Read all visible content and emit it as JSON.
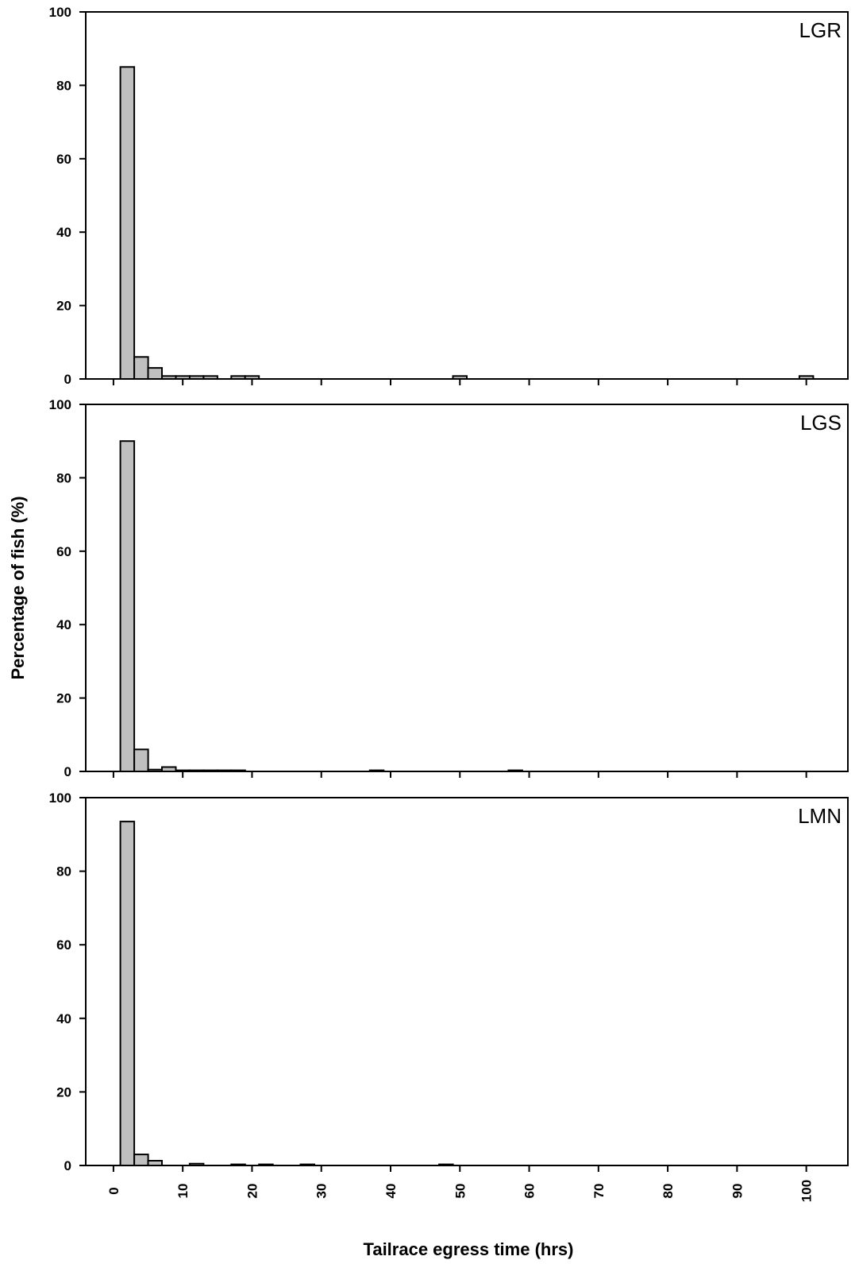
{
  "figure": {
    "ylabel": "Percentage of fish (%)",
    "xlabel": "Tailrace egress time (hrs)"
  },
  "chart_data": [
    {
      "type": "bar",
      "panel_label": "LGR",
      "bin_width_hrs": 2,
      "xlim": [
        -4,
        106
      ],
      "ylim": [
        0,
        100
      ],
      "yticks": [
        0,
        20,
        40,
        60,
        80,
        100
      ],
      "xticks": [
        0,
        10,
        20,
        30,
        40,
        50,
        60,
        70,
        80,
        90,
        100
      ],
      "x": [
        2,
        4,
        6,
        8,
        10,
        12,
        14,
        18,
        20,
        50,
        100
      ],
      "values": [
        85,
        6,
        3,
        0.8,
        0.8,
        0.8,
        0.8,
        0.8,
        0.8,
        0.8,
        0.8
      ]
    },
    {
      "type": "bar",
      "panel_label": "LGS",
      "bin_width_hrs": 2,
      "xlim": [
        -4,
        106
      ],
      "ylim": [
        0,
        100
      ],
      "yticks": [
        0,
        20,
        40,
        60,
        80,
        100
      ],
      "xticks": [
        0,
        10,
        20,
        30,
        40,
        50,
        60,
        70,
        80,
        90,
        100
      ],
      "x": [
        2,
        4,
        6,
        8,
        10,
        12,
        14,
        16,
        18,
        38,
        58
      ],
      "values": [
        90,
        6,
        0.5,
        1.2,
        0.3,
        0.3,
        0.3,
        0.3,
        0.3,
        0.3,
        0.3
      ]
    },
    {
      "type": "bar",
      "panel_label": "LMN",
      "bin_width_hrs": 2,
      "xlim": [
        -4,
        106
      ],
      "ylim": [
        0,
        100
      ],
      "yticks": [
        0,
        20,
        40,
        60,
        80,
        100
      ],
      "xticks": [
        0,
        10,
        20,
        30,
        40,
        50,
        60,
        70,
        80,
        90,
        100
      ],
      "xticklabels": [
        "0",
        "10",
        "20",
        "30",
        "40",
        "50",
        "60",
        "70",
        "80",
        "90",
        "100"
      ],
      "x": [
        2,
        4,
        6,
        12,
        18,
        22,
        28,
        48
      ],
      "values": [
        93.5,
        3,
        1.3,
        0.5,
        0.3,
        0.3,
        0.3,
        0.3
      ]
    }
  ]
}
